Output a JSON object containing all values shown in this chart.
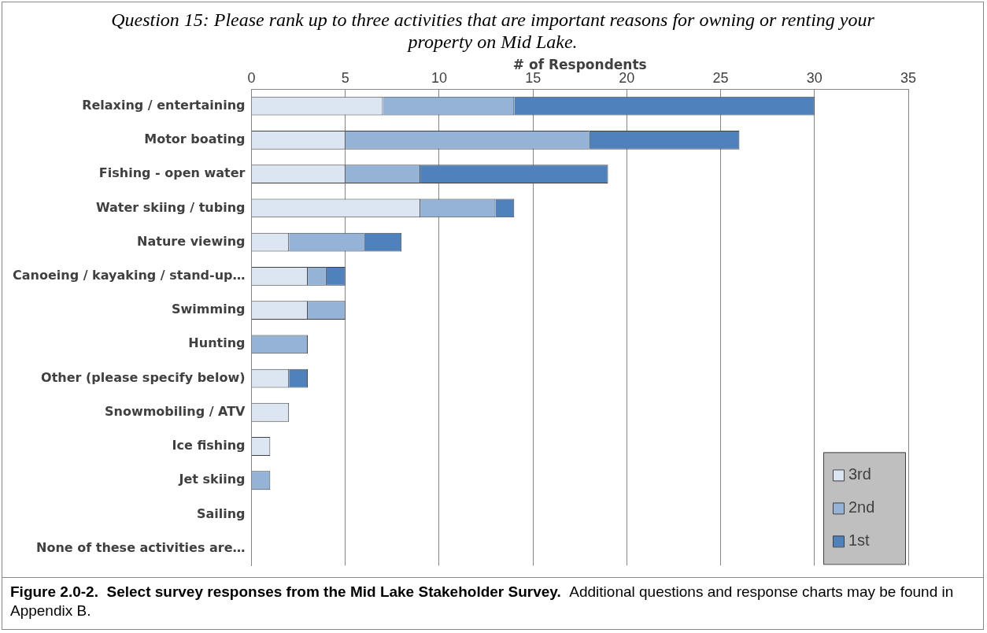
{
  "chart_data": {
    "type": "bar",
    "orientation": "horizontal",
    "stacked": true,
    "title": "Question 15:  Please rank up to three activities that are important reasons for owning or renting your property on Mid Lake.",
    "xlabel": "# of Respondents",
    "categories": [
      "Relaxing / entertaining",
      "Motor boating",
      "Fishing - open water",
      "Water skiing / tubing",
      "Nature viewing",
      "Canoeing / kayaking / stand-up…",
      "Swimming",
      "Hunting",
      "Other (please specify below)",
      "Snowmobiling / ATV",
      "Ice fishing",
      "Jet skiing",
      "Sailing",
      "None of these activities are…"
    ],
    "series": [
      {
        "name": "3rd",
        "color": "#dce6f2",
        "values": [
          7,
          5,
          5,
          9,
          2,
          3,
          3,
          0,
          2,
          2,
          1,
          0,
          0,
          0
        ]
      },
      {
        "name": "2nd",
        "color": "#95b3d7",
        "values": [
          7,
          13,
          4,
          4,
          4,
          1,
          2,
          3,
          0,
          0,
          0,
          1,
          0,
          0
        ]
      },
      {
        "name": "1st",
        "color": "#4f81bd",
        "values": [
          16,
          8,
          10,
          1,
          2,
          1,
          0,
          0,
          1,
          0,
          0,
          0,
          0,
          0
        ]
      }
    ],
    "xlim": [
      0,
      35
    ],
    "xticks": [
      0,
      5,
      10,
      15,
      20,
      25,
      30,
      35
    ],
    "grid": "x",
    "legend": "bottom right",
    "annotations": [
      "Figure 2.0-2.  Select survey responses from the Mid Lake Stakeholder Survey.",
      "Additional questions and response charts may be found in Appendix B."
    ]
  }
}
